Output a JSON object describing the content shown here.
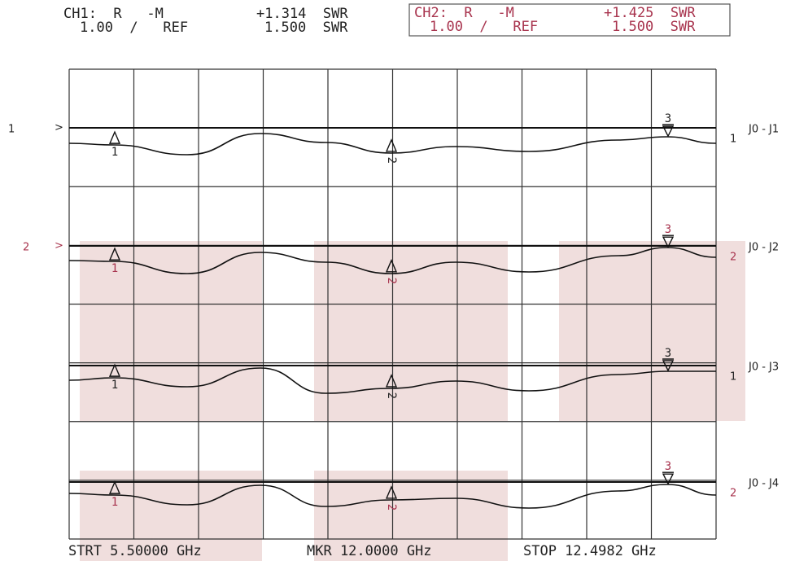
{
  "header": {
    "ch1": {
      "line1": "CH1:  R   -M",
      "value1": "+1.314  SWR",
      "line2": "1.00  /   REF",
      "value2": "1.500  SWR"
    },
    "ch2": {
      "line1": "CH2:  R   -M",
      "value1": "+1.425  SWR",
      "line2": "1.00  /   REF",
      "value2": "1.500  SWR"
    }
  },
  "traces": [
    {
      "ref_label": "1",
      "ref_symbol": ">",
      "name": "J0 - J1",
      "channel": "1",
      "markers": [
        "1",
        "2",
        "3"
      ]
    },
    {
      "ref_label": "2",
      "ref_symbol": ">",
      "name": "J0 - J2",
      "channel": "2",
      "markers": [
        "1",
        "2",
        "3"
      ]
    },
    {
      "name": "J0 - J3",
      "channel": "1",
      "markers": [
        "1",
        "2",
        "3"
      ]
    },
    {
      "name": "J0 - J4",
      "channel": "2",
      "markers": [
        "1",
        "2",
        "3"
      ]
    }
  ],
  "footer": {
    "start": "STRT 5.50000 GHz",
    "marker": "MKR 12.0000 GHz",
    "stop": "STOP 12.4982 GHz"
  }
}
